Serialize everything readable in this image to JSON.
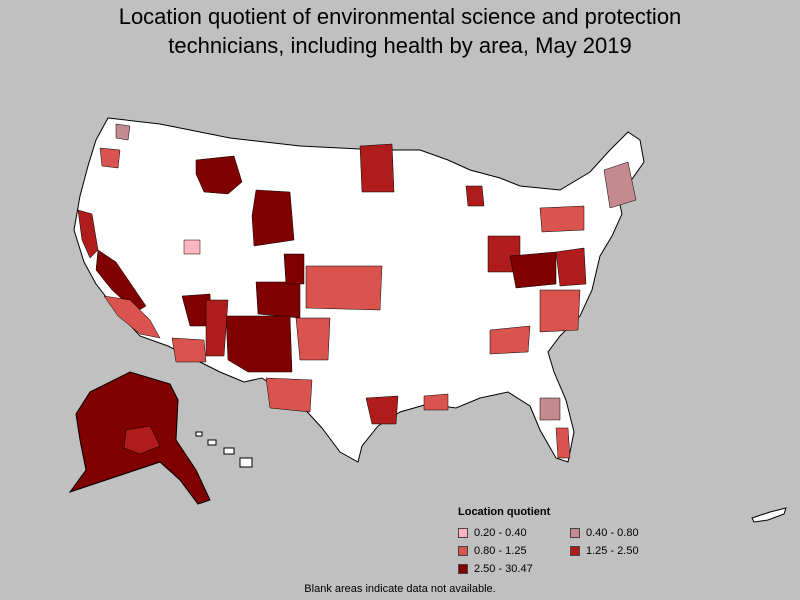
{
  "title_line1": "Location quotient of environmental science and protection",
  "title_line2": "technicians, including health by area, May 2019",
  "legend": {
    "title": "Location quotient",
    "items": [
      {
        "label": "0.20 - 0.40",
        "color": "#ffb6c1"
      },
      {
        "label": "0.40 - 0.80",
        "color": "#c48a8f"
      },
      {
        "label": "0.80 - 1.25",
        "color": "#d9534f"
      },
      {
        "label": "1.25 - 2.50",
        "color": "#b01c1c"
      },
      {
        "label": "2.50 - 30.47",
        "color": "#800000"
      }
    ]
  },
  "footnote": "Blank areas indicate data not available.",
  "colors": {
    "background": "#c0c0c0",
    "land": "#ffffff",
    "border": "#000000"
  }
}
